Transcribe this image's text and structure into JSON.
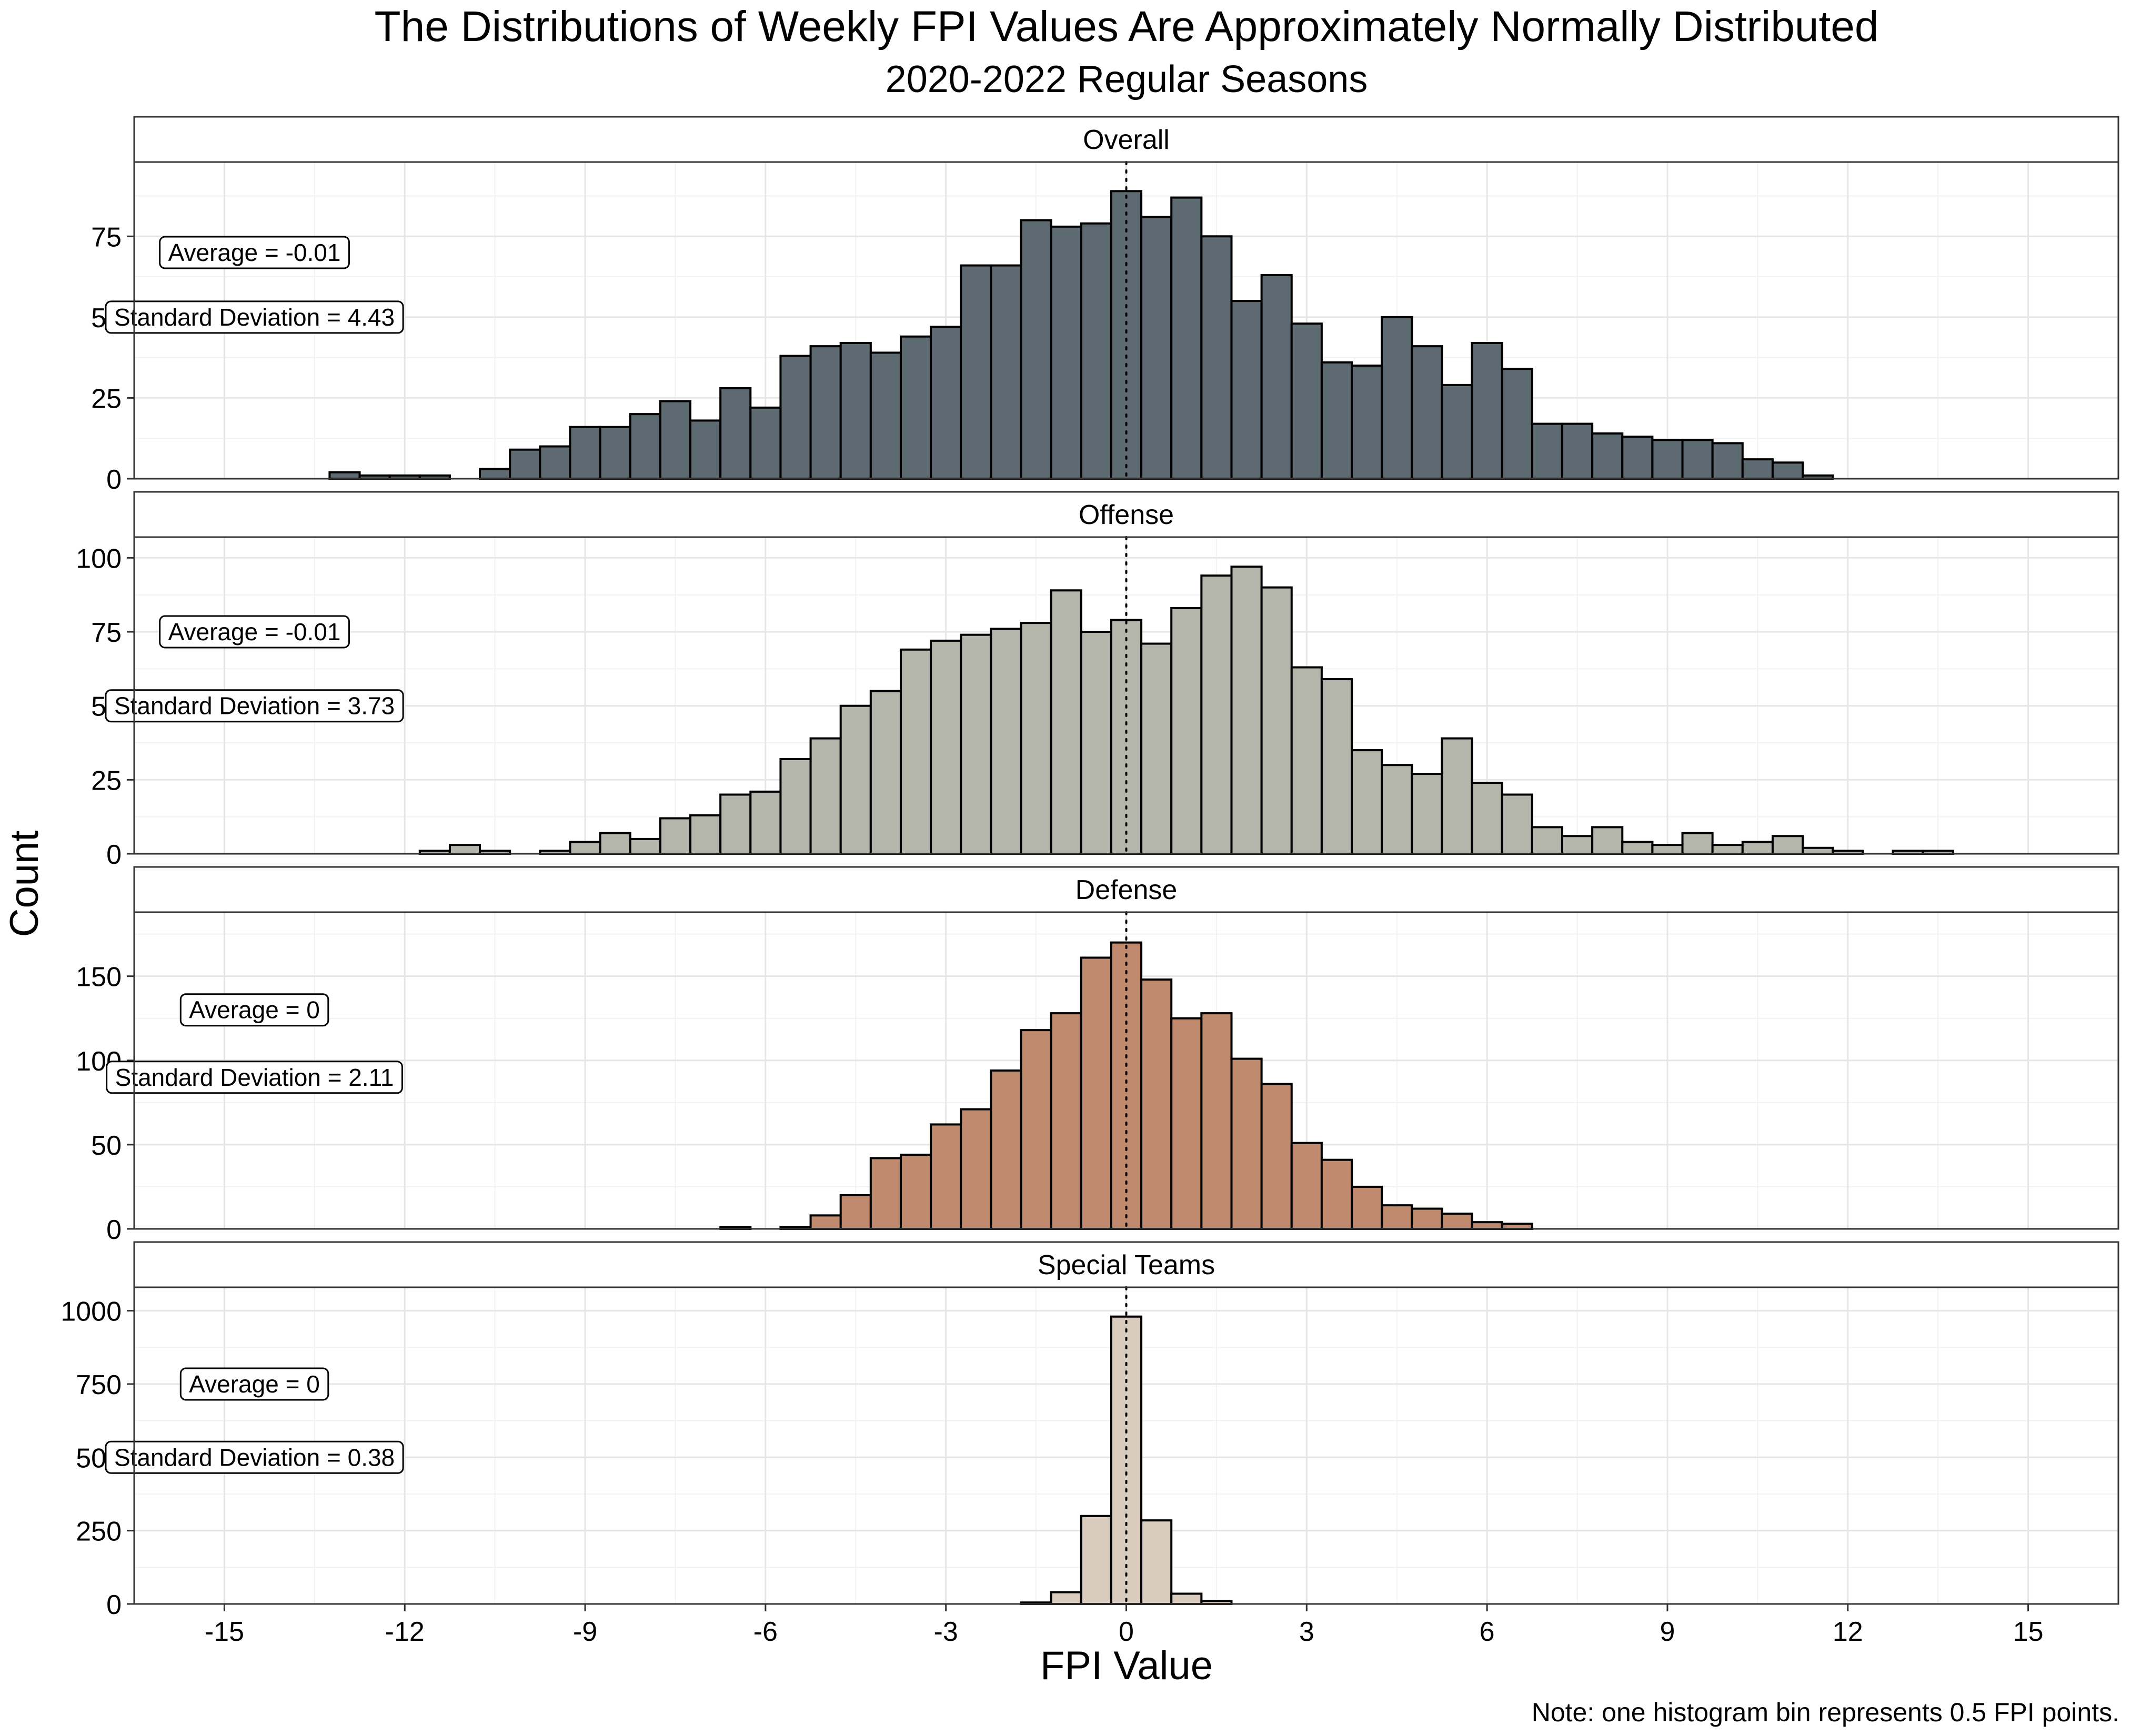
{
  "chart_data": {
    "type": "bar",
    "title": "The Distributions of Weekly FPI Values Are Approximately Normally Distributed",
    "subtitle": "2020-2022 Regular Seasons",
    "xlabel": "FPI Value",
    "ylabel": "Count",
    "caption": "Note: one histogram bin represents 0.5 FPI points.",
    "bin_width": 0.5,
    "xlim": [
      -16.5,
      16.5
    ],
    "x_ticks": [
      -15,
      -12,
      -9,
      -6,
      -3,
      0,
      3,
      6,
      9,
      12,
      15
    ],
    "x_tick_labels": [
      "-15",
      "-12",
      "-9",
      "-6",
      "-3",
      "0",
      "3",
      "6",
      "9",
      "12",
      "15"
    ],
    "reference_line_x": 0,
    "grid": true,
    "panels": [
      {
        "name": "Overall",
        "fill": "#5e6a71",
        "ylim": [
          0,
          98
        ],
        "y_ticks": [
          0,
          25,
          50,
          75
        ],
        "y_tick_labels": [
          "0",
          "25",
          "50",
          "75"
        ],
        "annotations": [
          "Average = -0.01",
          "Standard Deviation = 4.43"
        ],
        "annotation_values": [
          -0.01,
          4.43
        ],
        "annotation_positions": [
          [
            -14.5,
            70
          ],
          [
            -14.5,
            50
          ]
        ],
        "bin_starts": [
          -13.25,
          -12.75,
          -12.25,
          -11.75,
          -11.25,
          -10.75,
          -10.25,
          -9.75,
          -9.25,
          -8.75,
          -8.25,
          -7.75,
          -7.25,
          -6.75,
          -6.25,
          -5.75,
          -5.25,
          -4.75,
          -4.25,
          -3.75,
          -3.25,
          -2.75,
          -2.25,
          -1.75,
          -1.25,
          -0.75,
          -0.25,
          0.25,
          0.75,
          1.25,
          1.75,
          2.25,
          2.75,
          3.25,
          3.75,
          4.25,
          4.75,
          5.25,
          5.75,
          6.25,
          6.75,
          7.25,
          7.75,
          8.25,
          8.75,
          9.25,
          9.75,
          10.25,
          10.75,
          11.25
        ],
        "counts": [
          2,
          1,
          1,
          1,
          0,
          3,
          9,
          10,
          16,
          16,
          20,
          24,
          18,
          28,
          22,
          38,
          41,
          42,
          39,
          44,
          47,
          66,
          66,
          80,
          78,
          79,
          89,
          81,
          87,
          75,
          55,
          63,
          48,
          36,
          35,
          50,
          41,
          29,
          42,
          34,
          17,
          17,
          14,
          13,
          12,
          12,
          11,
          6,
          5,
          1
        ]
      },
      {
        "name": "Offense",
        "fill": "#b5b6ab",
        "ylim": [
          0,
          107
        ],
        "y_ticks": [
          0,
          25,
          50,
          75,
          100
        ],
        "y_tick_labels": [
          "0",
          "25",
          "50",
          "75",
          "100"
        ],
        "annotations": [
          "Average = -0.01",
          "Standard Deviation = 3.73"
        ],
        "annotation_values": [
          -0.01,
          3.73
        ],
        "annotation_positions": [
          [
            -14.5,
            75
          ],
          [
            -14.5,
            50
          ]
        ],
        "bin_starts": [
          -11.75,
          -11.25,
          -10.75,
          -10.25,
          -9.75,
          -9.25,
          -8.75,
          -8.25,
          -7.75,
          -7.25,
          -6.75,
          -6.25,
          -5.75,
          -5.25,
          -4.75,
          -4.25,
          -3.75,
          -3.25,
          -2.75,
          -2.25,
          -1.75,
          -1.25,
          -0.75,
          -0.25,
          0.25,
          0.75,
          1.25,
          1.75,
          2.25,
          2.75,
          3.25,
          3.75,
          4.25,
          4.75,
          5.25,
          5.75,
          6.25,
          6.75,
          7.25,
          7.75,
          8.25,
          8.75,
          9.25,
          9.75,
          10.25,
          10.75,
          11.25,
          11.75,
          12.25,
          12.75,
          13.25
        ],
        "counts": [
          1,
          3,
          1,
          0,
          1,
          4,
          7,
          5,
          12,
          13,
          20,
          21,
          32,
          39,
          50,
          55,
          69,
          72,
          74,
          76,
          78,
          89,
          75,
          79,
          71,
          83,
          94,
          97,
          90,
          63,
          59,
          35,
          30,
          27,
          39,
          24,
          20,
          9,
          6,
          9,
          4,
          3,
          7,
          3,
          4,
          6,
          2,
          1,
          0,
          1,
          1
        ]
      },
      {
        "name": "Defense",
        "fill": "#c08a6e",
        "ylim": [
          0,
          188
        ],
        "y_ticks": [
          0,
          50,
          100,
          150
        ],
        "y_tick_labels": [
          "0",
          "50",
          "100",
          "150"
        ],
        "annotations": [
          "Average = 0",
          "Standard Deviation = 2.11"
        ],
        "annotation_values": [
          0,
          2.11
        ],
        "annotation_positions": [
          [
            -14.5,
            130
          ],
          [
            -14.5,
            90
          ]
        ],
        "bin_starts": [
          -6.75,
          -6.25,
          -5.75,
          -5.25,
          -4.75,
          -4.25,
          -3.75,
          -3.25,
          -2.75,
          -2.25,
          -1.75,
          -1.25,
          -0.75,
          -0.25,
          0.25,
          0.75,
          1.25,
          1.75,
          2.25,
          2.75,
          3.25,
          3.75,
          4.25,
          4.75,
          5.25,
          5.75,
          6.25
        ],
        "counts": [
          1,
          0,
          1,
          8,
          20,
          42,
          44,
          62,
          71,
          94,
          118,
          128,
          161,
          170,
          148,
          125,
          128,
          101,
          86,
          51,
          41,
          25,
          14,
          12,
          9,
          4,
          3
        ]
      },
      {
        "name": "Special Teams",
        "fill": "#d9cbbd",
        "ylim": [
          0,
          1080
        ],
        "y_ticks": [
          0,
          250,
          500,
          750,
          1000
        ],
        "y_tick_labels": [
          "0",
          "250",
          "500",
          "750",
          "1000"
        ],
        "annotations": [
          "Average = 0",
          "Standard Deviation = 0.38"
        ],
        "annotation_values": [
          0,
          0.38
        ],
        "annotation_positions": [
          [
            -14.5,
            750
          ],
          [
            -14.5,
            500
          ]
        ],
        "bin_starts": [
          -1.75,
          -1.25,
          -0.75,
          -0.25,
          0.25,
          0.75,
          1.25
        ],
        "counts": [
          5,
          40,
          300,
          980,
          285,
          35,
          10
        ]
      }
    ]
  }
}
